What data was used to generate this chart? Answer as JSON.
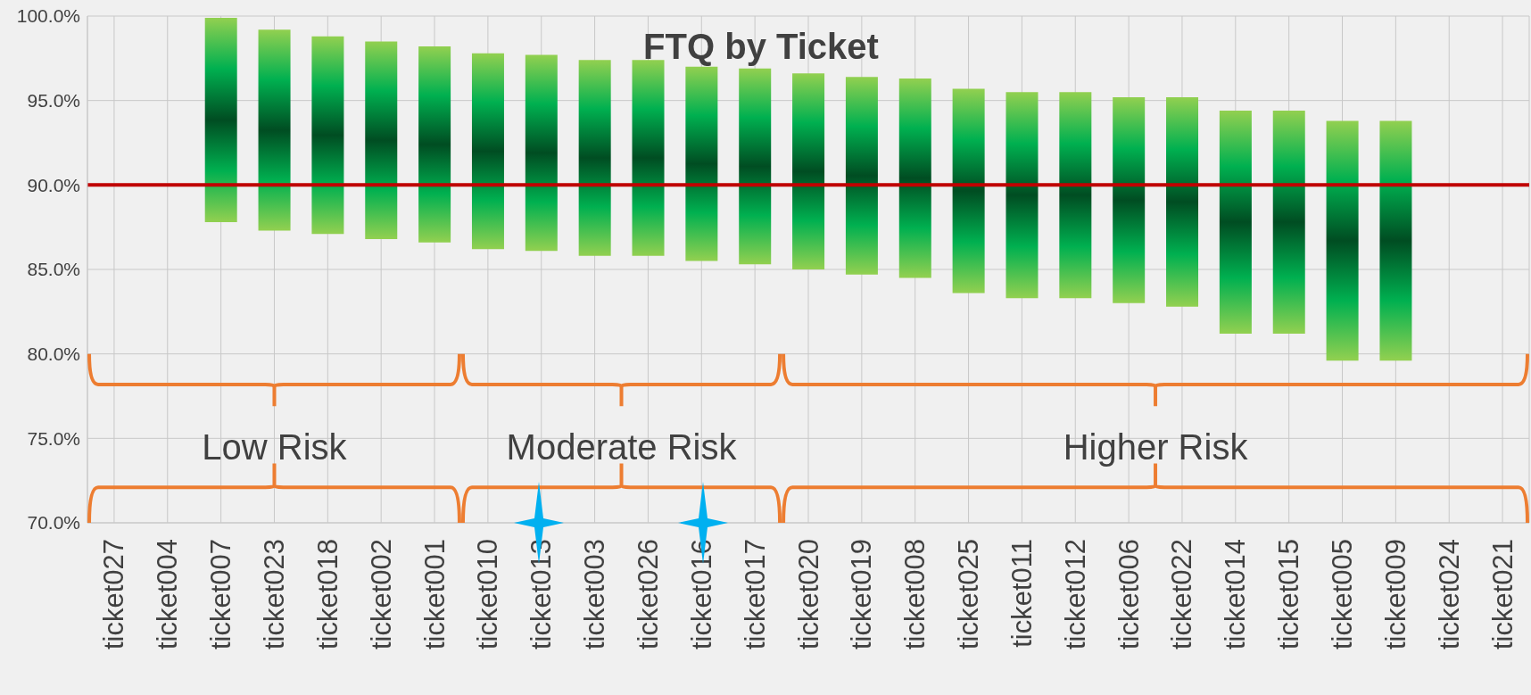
{
  "chart_data": {
    "type": "bar",
    "title": "FTQ by Ticket",
    "categories": [
      "ticket027",
      "ticket004",
      "ticket007",
      "ticket023",
      "ticket018",
      "ticket002",
      "ticket001",
      "ticket010",
      "ticket013",
      "ticket003",
      "ticket026",
      "ticket016",
      "ticket017",
      "ticket020",
      "ticket019",
      "ticket008",
      "ticket025",
      "ticket011",
      "ticket012",
      "ticket006",
      "ticket022",
      "ticket014",
      "ticket015",
      "ticket005",
      "ticket009",
      "ticket024",
      "ticket021"
    ],
    "base": [
      null,
      null,
      87.8,
      87.3,
      87.1,
      86.8,
      86.6,
      86.2,
      86.1,
      85.8,
      85.8,
      85.5,
      85.3,
      85.0,
      84.7,
      84.5,
      83.6,
      83.3,
      83.3,
      83.0,
      82.8,
      81.2,
      81.2,
      79.6,
      79.6,
      null,
      null
    ],
    "values": [
      null,
      null,
      12.1,
      11.9,
      11.7,
      11.7,
      11.6,
      11.6,
      11.6,
      11.6,
      11.6,
      11.5,
      11.6,
      11.6,
      11.7,
      11.8,
      12.1,
      12.2,
      12.2,
      12.2,
      12.4,
      13.2,
      13.2,
      14.2,
      14.2,
      null,
      null
    ],
    "color": "#00b050",
    "ylim": [
      70,
      100
    ],
    "yticks": [
      {
        "value": 70,
        "label": "70.0%"
      },
      {
        "value": 75,
        "label": "75.0%"
      },
      {
        "value": 80,
        "label": "80.0%"
      },
      {
        "value": 85,
        "label": "85.0%"
      },
      {
        "value": 90,
        "label": "90.0%"
      },
      {
        "value": 95,
        "label": "95.0%"
      },
      {
        "value": 100,
        "label": "100.0%"
      }
    ],
    "ref_lines": [
      {
        "axis": "y",
        "value": 90,
        "color": "#c00000"
      }
    ],
    "annotations": [
      "Low Risk",
      "Moderate Risk",
      "Higher Risk"
    ],
    "grid": true
  }
}
